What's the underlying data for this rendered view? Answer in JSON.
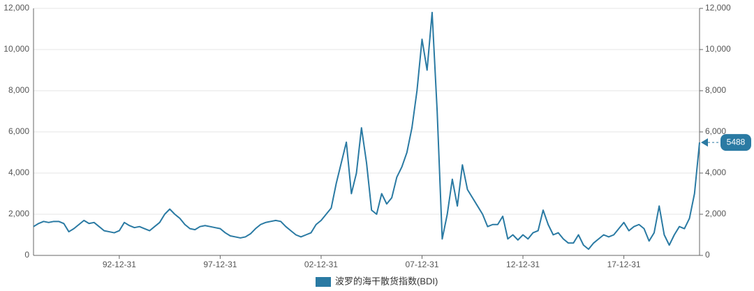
{
  "chart_data": {
    "type": "line",
    "x": [
      "88-09-30",
      "88-12-31",
      "89-03-31",
      "89-06-30",
      "89-09-30",
      "89-12-31",
      "90-03-31",
      "90-06-30",
      "90-09-30",
      "90-12-31",
      "91-03-31",
      "91-06-30",
      "91-09-30",
      "91-12-31",
      "92-03-31",
      "92-06-30",
      "92-09-30",
      "92-12-31",
      "93-03-31",
      "93-06-30",
      "93-09-30",
      "93-12-31",
      "94-03-31",
      "94-06-30",
      "94-09-30",
      "94-12-31",
      "95-03-31",
      "95-06-30",
      "95-09-30",
      "95-12-31",
      "96-03-31",
      "96-06-30",
      "96-09-30",
      "96-12-31",
      "97-03-31",
      "97-06-30",
      "97-09-30",
      "97-12-31",
      "98-03-31",
      "98-06-30",
      "98-09-30",
      "98-12-31",
      "99-03-31",
      "99-06-30",
      "99-09-30",
      "99-12-31",
      "00-03-31",
      "00-06-30",
      "00-09-30",
      "00-12-31",
      "01-03-31",
      "01-06-30",
      "01-09-30",
      "01-12-31",
      "02-03-31",
      "02-06-30",
      "02-09-30",
      "02-12-31",
      "03-03-31",
      "03-06-30",
      "03-09-30",
      "03-12-31",
      "04-03-31",
      "04-06-30",
      "04-09-30",
      "04-12-31",
      "05-03-31",
      "05-06-30",
      "05-09-30",
      "05-12-31",
      "06-03-31",
      "06-06-30",
      "06-09-30",
      "06-12-31",
      "07-03-31",
      "07-06-30",
      "07-09-30",
      "07-12-31",
      "08-03-31",
      "08-06-30",
      "08-09-30",
      "08-12-31",
      "09-03-31",
      "09-06-30",
      "09-09-30",
      "09-12-31",
      "10-03-31",
      "10-06-30",
      "10-09-30",
      "10-12-31",
      "11-03-31",
      "11-06-30",
      "11-09-30",
      "11-12-31",
      "12-03-31",
      "12-06-30",
      "12-09-30",
      "12-12-31",
      "13-03-31",
      "13-06-30",
      "13-09-30",
      "13-12-31",
      "14-03-31",
      "14-06-30",
      "14-09-30",
      "14-12-31",
      "15-03-31",
      "15-06-30",
      "15-09-30",
      "15-12-31",
      "16-03-31",
      "16-06-30",
      "16-09-30",
      "16-12-31",
      "17-03-31",
      "17-06-30",
      "17-09-30",
      "17-12-31",
      "18-03-31",
      "18-06-30",
      "18-09-30",
      "18-12-31",
      "19-03-31",
      "19-06-30",
      "19-09-30",
      "19-12-31",
      "20-03-31",
      "20-06-30",
      "20-09-30",
      "20-12-31",
      "21-03-31",
      "21-06-30",
      "21-09-30"
    ],
    "series": [
      {
        "name": "波罗的海干散货指数(BDI)",
        "color": "#2a7aa3",
        "values": [
          1400,
          1550,
          1650,
          1600,
          1650,
          1650,
          1550,
          1150,
          1300,
          1500,
          1700,
          1550,
          1600,
          1400,
          1200,
          1150,
          1100,
          1200,
          1600,
          1450,
          1350,
          1400,
          1300,
          1200,
          1400,
          1600,
          2000,
          2250,
          2000,
          1800,
          1500,
          1300,
          1250,
          1400,
          1450,
          1400,
          1350,
          1300,
          1100,
          950,
          900,
          850,
          900,
          1050,
          1300,
          1500,
          1600,
          1650,
          1700,
          1650,
          1400,
          1200,
          1000,
          900,
          1000,
          1100,
          1500,
          1700,
          2000,
          2300,
          3500,
          4500,
          5500,
          3000,
          4000,
          6200,
          4500,
          2200,
          2000,
          3000,
          2500,
          2800,
          3800,
          4300,
          5000,
          6200,
          8000,
          10500,
          9000,
          11800,
          7000,
          800,
          2000,
          3700,
          2400,
          4400,
          3200,
          2800,
          2400,
          2000,
          1400,
          1500,
          1500,
          1900,
          800,
          1000,
          750,
          1000,
          800,
          1100,
          1200,
          2200,
          1500,
          1000,
          1100,
          800,
          600,
          600,
          1000,
          500,
          300,
          600,
          800,
          1000,
          900,
          1000,
          1300,
          1600,
          1200,
          1400,
          1500,
          1300,
          700,
          1100,
          2400,
          1000,
          500,
          1000,
          1400,
          1300,
          1800,
          3000,
          5488
        ]
      }
    ],
    "xticks": [
      "92-12-31",
      "97-12-31",
      "02-12-31",
      "07-12-31",
      "12-12-31",
      "17-12-31"
    ],
    "ylim": [
      0,
      12000
    ],
    "yticks": [
      0,
      {
        "value": 2000,
        "label": "2,000"
      },
      {
        "value": 4000,
        "label": "4,000"
      },
      {
        "value": 6000,
        "label": "6,000"
      },
      {
        "value": 8000,
        "label": "8,000"
      },
      {
        "value": 10000,
        "label": "10,000"
      },
      {
        "value": 12000,
        "label": "12,000"
      }
    ],
    "y2lim": [
      0,
      12000
    ],
    "y2ticks": [
      0,
      {
        "value": 2000,
        "label": "2,000"
      },
      {
        "value": 4000,
        "label": "4,000"
      },
      {
        "value": 6000,
        "label": "6,000"
      },
      {
        "value": 8000,
        "label": "8,000"
      },
      {
        "value": 10000,
        "label": "10,000"
      },
      {
        "value": 12000,
        "label": "12,000"
      }
    ],
    "grid": true,
    "legend": "bottom"
  }
}
